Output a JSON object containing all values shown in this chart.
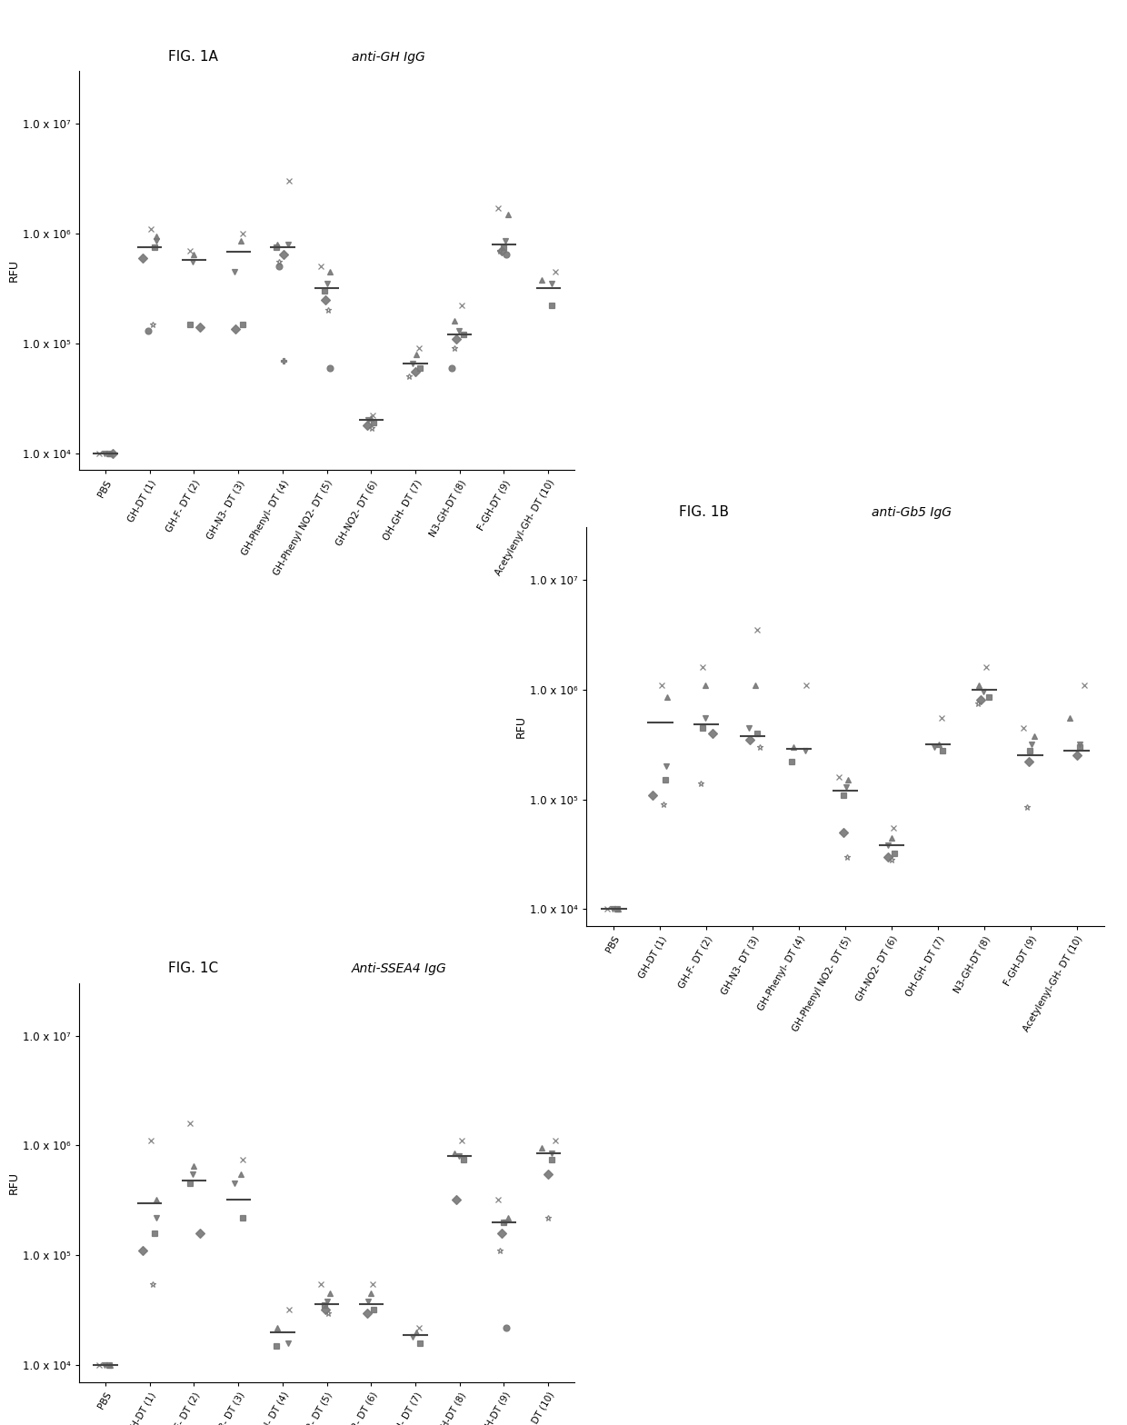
{
  "categories": [
    "PBS",
    "GH-DT (1)",
    "GH-F- DT (2)",
    "GH-N3- DT (3)",
    "GH-Phenyl- DT (4)",
    "GH-Phenyl NO2- DT (5)",
    "GH-NO2- DT (6)",
    "OH-GH- DT (7)",
    "N3-GH-DT (8)",
    "F-GH-DT (9)",
    "Acetylenyl-GH- DT (10)"
  ],
  "fig1A_title": "FIG. 1A",
  "fig1A_subtitle": "anti-GH IgG",
  "fig1B_title": "FIG. 1B",
  "fig1B_subtitle": "anti-Gb5 IgG",
  "fig1C_title": "FIG. 1C",
  "fig1C_subtitle": "Anti-SSEA4 IgG",
  "ylabel": "RFU",
  "ylim_low": 7000,
  "ylim_high": 30000000.0,
  "yticks": [
    10000.0,
    100000.0,
    1000000.0,
    10000000.0
  ],
  "ytick_labels": [
    "1.0 x 10⁴",
    "1.0 x 10⁵",
    "1.0 x 10⁶",
    "1.0 x 10⁷"
  ],
  "fig1A_data": {
    "points": [
      [
        10000.0,
        10000.0,
        10000.0,
        10000.0,
        10000.0
      ],
      [
        1100000.0,
        950000.0,
        850000.0,
        750000.0,
        600000.0,
        150000.0,
        130000.0
      ],
      [
        700000.0,
        650000.0,
        550000.0,
        150000.0,
        140000.0
      ],
      [
        1000000.0,
        850000.0,
        450000.0,
        150000.0,
        135000.0
      ],
      [
        3000000.0,
        800000.0,
        800000.0,
        750000.0,
        650000.0,
        550000.0,
        500000.0,
        70000.0
      ],
      [
        500000.0,
        450000.0,
        350000.0,
        300000.0,
        250000.0,
        200000.0,
        60000.0
      ],
      [
        22000.0,
        21000.0,
        20000.0,
        19000.0,
        18000.0,
        17000.0
      ],
      [
        90000.0,
        80000.0,
        65000.0,
        60000.0,
        55000.0,
        50000.0
      ],
      [
        220000.0,
        160000.0,
        130000.0,
        120000.0,
        110000.0,
        90000.0,
        60000.0
      ],
      [
        1700000.0,
        1500000.0,
        850000.0,
        750000.0,
        700000.0,
        700000.0,
        650000.0
      ],
      [
        450000.0,
        380000.0,
        350000.0,
        220000.0
      ]
    ],
    "medians": [
      10000.0,
      750000.0,
      580000.0,
      680000.0,
      750000.0,
      320000.0,
      20000.0,
      65000.0,
      120000.0,
      800000.0,
      320000.0
    ]
  },
  "fig1B_data": {
    "points": [
      [
        10000.0,
        10000.0,
        10000.0,
        10000.0
      ],
      [
        1100000.0,
        850000.0,
        200000.0,
        150000.0,
        110000.0,
        90000.0
      ],
      [
        1600000.0,
        1100000.0,
        550000.0,
        450000.0,
        400000.0,
        140000.0
      ],
      [
        3500000.0,
        1100000.0,
        450000.0,
        400000.0,
        350000.0,
        300000.0
      ],
      [
        1100000.0,
        300000.0,
        280000.0,
        220000.0
      ],
      [
        160000.0,
        150000.0,
        130000.0,
        110000.0,
        50000.0,
        30000.0
      ],
      [
        55000.0,
        45000.0,
        38000.0,
        32000.0,
        30000.0,
        28000.0
      ],
      [
        550000.0,
        320000.0,
        300000.0,
        280000.0
      ],
      [
        1600000.0,
        1100000.0,
        950000.0,
        850000.0,
        800000.0,
        750000.0
      ],
      [
        450000.0,
        380000.0,
        320000.0,
        280000.0,
        220000.0,
        85000.0
      ],
      [
        1100000.0,
        550000.0,
        320000.0,
        300000.0,
        250000.0
      ]
    ],
    "medians": [
      10000.0,
      500000.0,
      480000.0,
      380000.0,
      290000.0,
      120000.0,
      38000.0,
      320000.0,
      1000000.0,
      250000.0,
      280000.0
    ]
  },
  "fig1C_data": {
    "points": [
      [
        10000.0,
        10000.0,
        10000.0,
        10000.0
      ],
      [
        1100000.0,
        320000.0,
        220000.0,
        160000.0,
        110000.0,
        55000.0
      ],
      [
        1600000.0,
        650000.0,
        550000.0,
        450000.0,
        160000.0
      ],
      [
        750000.0,
        550000.0,
        450000.0,
        220000.0
      ],
      [
        32000.0,
        22000.0,
        16000.0,
        15000.0
      ],
      [
        55000.0,
        45000.0,
        38000.0,
        35000.0,
        32000.0,
        30000.0
      ],
      [
        55000.0,
        45000.0,
        38000.0,
        32000.0,
        30000.0
      ],
      [
        22000.0,
        20000.0,
        18000.0,
        16000.0
      ],
      [
        1100000.0,
        850000.0,
        800000.0,
        750000.0,
        320000.0
      ],
      [
        320000.0,
        220000.0,
        200000.0,
        200000.0,
        160000.0,
        110000.0,
        22000.0
      ],
      [
        1100000.0,
        950000.0,
        850000.0,
        750000.0,
        550000.0,
        220000.0
      ]
    ],
    "medians": [
      10000.0,
      300000.0,
      480000.0,
      320000.0,
      20000.0,
      36000.0,
      36000.0,
      19000.0,
      800000.0,
      200000.0,
      850000.0
    ]
  }
}
